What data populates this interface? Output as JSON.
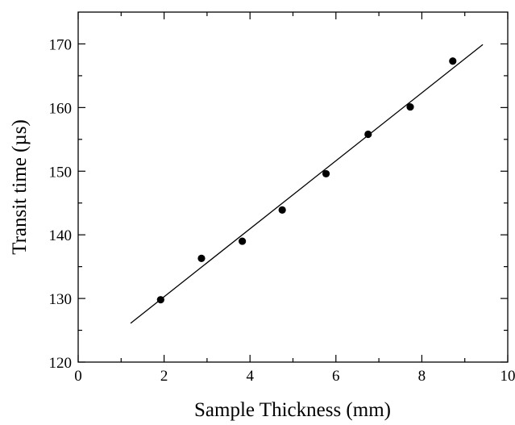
{
  "chart_data": {
    "type": "scatter",
    "title": "",
    "xlabel": "Sample Thickness (mm)",
    "ylabel": "Transit time (µs)",
    "xlim": [
      0,
      10
    ],
    "ylim": [
      120,
      175
    ],
    "x_ticks": [
      0,
      2,
      4,
      6,
      8,
      10
    ],
    "y_ticks": [
      120,
      130,
      140,
      150,
      160,
      170
    ],
    "x_tick_labels": [
      "0",
      "2",
      "4",
      "6",
      "8",
      "10"
    ],
    "y_tick_labels": [
      "120",
      "130",
      "140",
      "150",
      "160",
      "170"
    ],
    "grid": false,
    "series": [
      {
        "type": "scatter",
        "x": [
          1.92,
          2.87,
          3.82,
          4.75,
          5.77,
          6.75,
          7.73,
          8.72
        ],
        "y": [
          129.8,
          136.3,
          139.0,
          143.9,
          149.6,
          155.8,
          160.1,
          167.3
        ],
        "color": "#000000"
      },
      {
        "type": "line",
        "x": [
          1.22,
          9.42
        ],
        "y": [
          126.1,
          169.9
        ],
        "color": "#000000"
      }
    ]
  }
}
